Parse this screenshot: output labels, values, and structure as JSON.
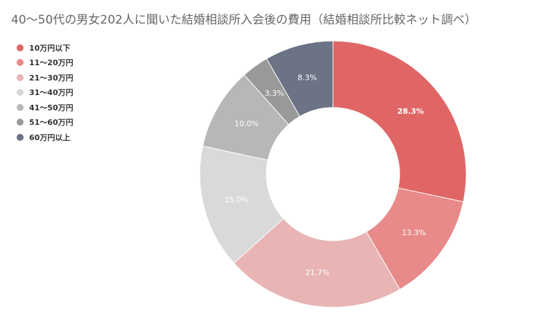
{
  "title": "40～50代の男女202人に聞いた結婚相談所入会後の費用（結婚相談所比較ネット調べ）",
  "chart_data": {
    "type": "pie",
    "style": "donut",
    "legend_position": "top-left",
    "categories": [
      "10万円以下",
      "11～20万円",
      "21～30万円",
      "31～40万円",
      "41～50万円",
      "51～60万円",
      "60万円以上"
    ],
    "values": [
      28.3,
      13.3,
      21.7,
      15.0,
      10.0,
      3.3,
      8.3
    ],
    "data_labels": [
      "28.3%",
      "13.3%",
      "21.7%",
      "15.0%",
      "10.0%",
      "3.3%",
      "8.3%"
    ],
    "colors": [
      "#e06666",
      "#e88a8a",
      "#e8b4b4",
      "#d9d9d9",
      "#b7b7b7",
      "#999999",
      "#6b7385"
    ],
    "label_bold": [
      true,
      false,
      false,
      false,
      false,
      false,
      false
    ]
  }
}
